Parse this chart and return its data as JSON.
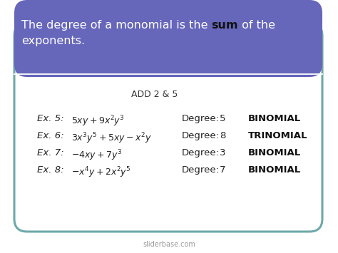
{
  "bg_color": "#ffffff",
  "outer_border_color": "#6fa8a8",
  "header_bg_color": "#6666bb",
  "header_text_color": "#ffffff",
  "header_bold_color": "#111111",
  "add_label": "ADD 2 & 5",
  "rows": [
    {
      "label": "Ex. 5:",
      "expr": "$5xy + 9x^{2}y^{3}$",
      "deg": "5",
      "type": "BINOMIAL"
    },
    {
      "label": "Ex. 6:",
      "expr": "$3x^{3}y^{5} + 5xy - x^{2}y$",
      "deg": "8",
      "type": "TRINOMIAL"
    },
    {
      "label": "Ex. 7:",
      "expr": "$-4xy + 7y^{3}$",
      "deg": "3",
      "type": "BINOMIAL"
    },
    {
      "label": "Ex. 8:",
      "expr": "$-x^{4}y + 2x^{2}y^{5}$",
      "deg": "7",
      "type": "BINOMIAL"
    }
  ],
  "footer": "sliderbase.com"
}
